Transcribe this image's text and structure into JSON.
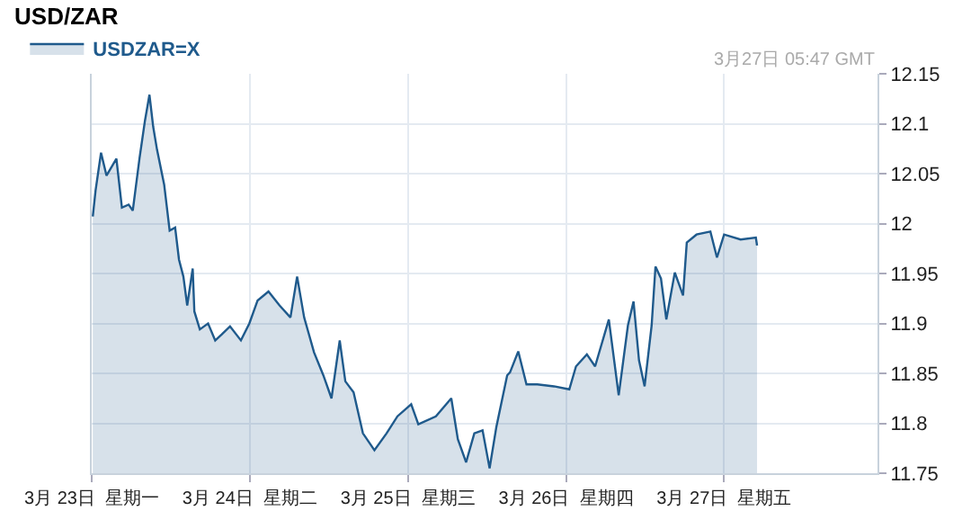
{
  "chart_data": {
    "type": "area",
    "title": "USD/ZAR",
    "annotations": [
      "3月27日 05:47 GMT"
    ],
    "x": [
      "--03-23T00:10",
      "--03-23T00:35",
      "--03-23T01:25",
      "--03-23T02:15",
      "--03-23T03:45",
      "--03-23T04:35",
      "--03-23T05:36",
      "--03-23T06:14",
      "--03-23T07:15",
      "--03-23T08:05",
      "--03-23T08:46",
      "--03-23T09:20",
      "--03-23T09:55",
      "--03-23T11:00",
      "--03-23T11:50",
      "--03-23T12:40",
      "--03-23T13:15",
      "--03-23T13:55",
      "--03-23T14:30",
      "--03-23T15:20",
      "--03-23T15:35",
      "--03-23T16:25",
      "--03-23T17:40",
      "--03-23T18:45",
      "--03-23T19:45",
      "--03-23T21:00",
      "--03-23T22:39",
      "--03-23T23:56",
      "--03-24T01:11",
      "--03-24T02:50",
      "--03-24T04:31",
      "--03-24T06:10",
      "--03-24T07:11",
      "--03-24T08:15",
      "--03-24T09:45",
      "--03-24T11:10",
      "--03-24T12:24",
      "--03-24T13:39",
      "--03-24T14:30",
      "--03-24T15:45",
      "--03-24T17:10",
      "--03-24T18:55",
      "--03-24T20:46",
      "--03-24T22:25",
      "--03-25T00:30",
      "--03-25T01:35",
      "--03-25T04:15",
      "--03-25T06:35",
      "--03-25T07:35",
      "--03-25T08:50",
      "--03-25T10:05",
      "--03-25T11:20",
      "--03-25T12:24",
      "--03-25T13:25",
      "--03-25T15:04",
      "--03-25T15:30",
      "--03-25T16:45",
      "--03-25T18:00",
      "--03-25T19:39",
      "--03-25T22:11",
      "--03-26T00:30",
      "--03-26T01:31",
      "--03-26T03:10",
      "--03-26T04:25",
      "--03-26T06:30",
      "--03-26T08:00",
      "--03-26T09:24",
      "--03-26T10:15",
      "--03-26T11:05",
      "--03-26T11:56",
      "--03-26T13:00",
      "--03-26T13:35",
      "--03-26T14:25",
      "--03-26T15:14",
      "--03-26T16:31",
      "--03-26T17:46",
      "--03-26T18:20",
      "--03-26T19:49",
      "--03-26T21:55",
      "--03-26T22:55",
      "--03-27T00:00",
      "--03-27T02:30",
      "--03-27T04:49",
      "--03-27T05:00"
    ],
    "series": [
      {
        "name": "USDZAR=X",
        "color": "#1f5a8c",
        "values": [
          12.007,
          12.033,
          12.071,
          12.048,
          12.065,
          12.016,
          12.019,
          12.013,
          12.065,
          12.103,
          12.129,
          12.097,
          12.074,
          12.039,
          11.993,
          11.996,
          11.964,
          11.947,
          11.918,
          11.955,
          11.912,
          11.894,
          11.9,
          11.883,
          11.889,
          11.897,
          11.883,
          11.9,
          11.923,
          11.932,
          11.918,
          11.906,
          11.947,
          11.906,
          11.871,
          11.848,
          11.825,
          11.883,
          11.842,
          11.831,
          11.79,
          11.773,
          11.79,
          11.807,
          11.819,
          11.799,
          11.807,
          11.825,
          11.784,
          11.761,
          11.79,
          11.793,
          11.755,
          11.796,
          11.848,
          11.851,
          11.872,
          11.839,
          11.839,
          11.837,
          11.834,
          11.857,
          11.869,
          11.857,
          11.904,
          11.828,
          11.898,
          11.922,
          11.863,
          11.837,
          11.898,
          11.957,
          11.945,
          11.904,
          11.951,
          11.928,
          11.981,
          11.989,
          11.992,
          11.966,
          11.989,
          11.984,
          11.986,
          11.978
        ]
      }
    ],
    "xlim": [
      "--03-23",
      "--03-27T23:17"
    ],
    "xticks": [
      {
        "value": "--03-23",
        "label": "3月 23日  星期一"
      },
      {
        "value": "--03-24",
        "label": "3月 24日  星期二"
      },
      {
        "value": "--03-25",
        "label": "3月 25日  星期三"
      },
      {
        "value": "--03-26",
        "label": "3月 26日  星期四"
      },
      {
        "value": "--03-27",
        "label": "3月 27日  星期五"
      }
    ],
    "ylim": [
      11.75,
      12.15
    ],
    "yticks": [
      11.75,
      11.8,
      11.85,
      11.9,
      11.95,
      12.0,
      12.05,
      12.1,
      12.15
    ],
    "grid": true,
    "legend": "top left"
  }
}
